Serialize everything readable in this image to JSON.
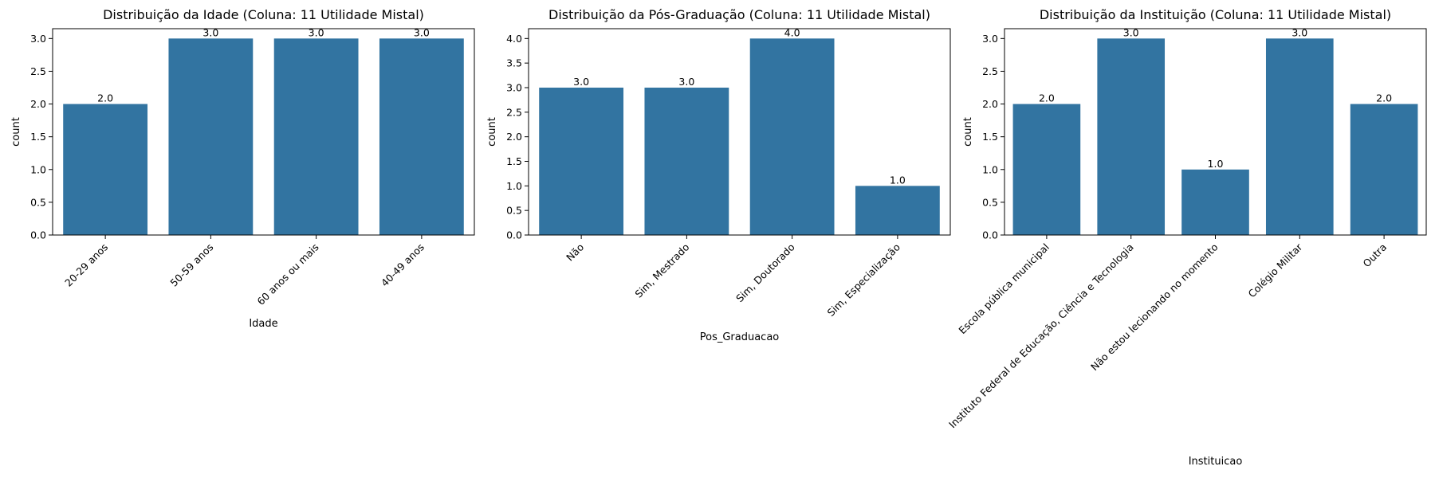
{
  "chart_data": [
    {
      "type": "bar",
      "title": "Distribuição da Idade (Coluna: 11 Utilidade Mistal)",
      "xlabel": "Idade",
      "ylabel": "count",
      "categories": [
        "20-29 anos",
        "50-59 anos",
        "60 anos ou mais",
        "40-49 anos"
      ],
      "values": [
        2,
        3,
        3,
        3
      ],
      "value_labels": [
        "2.0",
        "3.0",
        "3.0",
        "3.0"
      ],
      "ylim": [
        0,
        3.15
      ],
      "yticks": [
        0,
        0.5,
        1,
        1.5,
        2,
        2.5,
        3
      ],
      "ytick_labels": [
        "0.0",
        "0.5",
        "1.0",
        "1.5",
        "2.0",
        "2.5",
        "3.0"
      ],
      "color": "#3274a1"
    },
    {
      "type": "bar",
      "title": "Distribuição da Pós-Graduação (Coluna: 11 Utilidade Mistal)",
      "xlabel": "Pos_Graduacao",
      "ylabel": "count",
      "categories": [
        "Não",
        "Sim, Mestrado",
        "Sim, Doutorado",
        "Sim, Especialização"
      ],
      "values": [
        3,
        3,
        4,
        1
      ],
      "value_labels": [
        "3.0",
        "3.0",
        "4.0",
        "1.0"
      ],
      "ylim": [
        0,
        4.2
      ],
      "yticks": [
        0,
        0.5,
        1,
        1.5,
        2,
        2.5,
        3,
        3.5,
        4
      ],
      "ytick_labels": [
        "0.0",
        "0.5",
        "1.0",
        "1.5",
        "2.0",
        "2.5",
        "3.0",
        "3.5",
        "4.0"
      ],
      "color": "#3274a1"
    },
    {
      "type": "bar",
      "title": "Distribuição da Instituição (Coluna: 11 Utilidade Mistal)",
      "xlabel": "Instituicao",
      "ylabel": "count",
      "categories": [
        "Escola pública municipal",
        "Instituto Federal de Educação, Ciência e Tecnologia",
        "Não estou lecionando no momento",
        "Colégio Militar",
        "Outra"
      ],
      "values": [
        2,
        3,
        1,
        3,
        2
      ],
      "value_labels": [
        "2.0",
        "3.0",
        "1.0",
        "3.0",
        "2.0"
      ],
      "ylim": [
        0,
        3.15
      ],
      "yticks": [
        0,
        0.5,
        1,
        1.5,
        2,
        2.5,
        3
      ],
      "ytick_labels": [
        "0.0",
        "0.5",
        "1.0",
        "1.5",
        "2.0",
        "2.5",
        "3.0"
      ],
      "color": "#3274a1"
    }
  ]
}
